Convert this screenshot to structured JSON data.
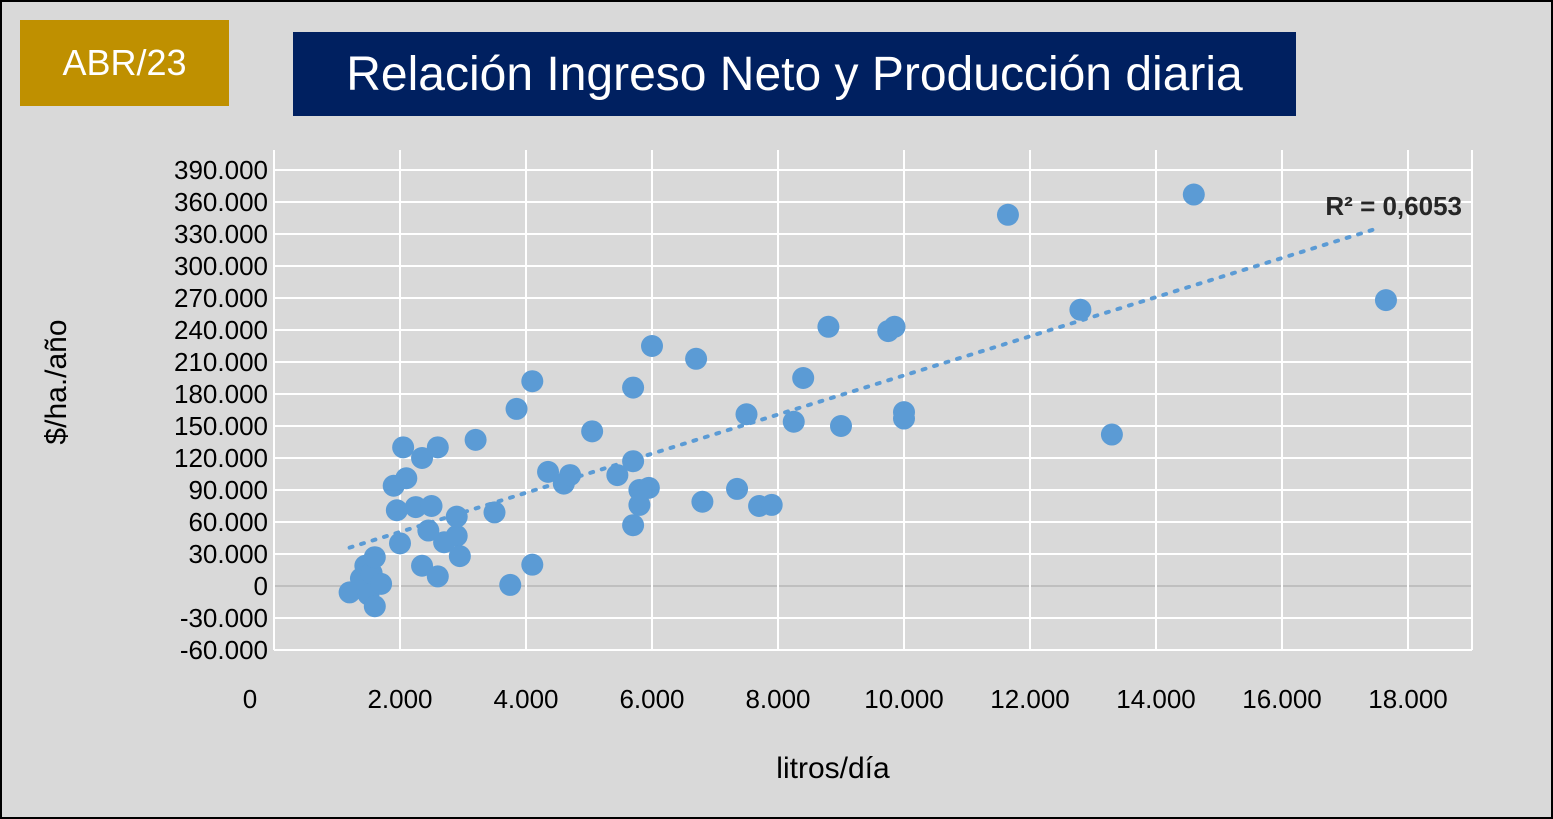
{
  "badge": "ABR/23",
  "colors": {
    "background": "#d9d9d9",
    "badge": "#bf9000",
    "title_bg": "#002060",
    "points": "#5b9bd5",
    "trendline": "#5b9bd5",
    "grid": "#ffffff"
  },
  "chart_data": {
    "type": "scatter",
    "title": "Relación Ingreso Neto y Producción diaria",
    "xlabel": "litros/día",
    "ylabel": "$/ha./año",
    "xlim": [
      0,
      18000
    ],
    "ylim": [
      -60000,
      390000
    ],
    "xticks": [
      "0",
      "2.000",
      "4.000",
      "6.000",
      "8.000",
      "10.000",
      "12.000",
      "14.000",
      "16.000",
      "18.000"
    ],
    "yticks": [
      "390.000",
      "360.000",
      "330.000",
      "300.000",
      "270.000",
      "240.000",
      "210.000",
      "180.000",
      "150.000",
      "120.000",
      "90.000",
      "60.000",
      "30.000",
      "0",
      "-30.000",
      "-60.000"
    ],
    "grid": true,
    "trendline": {
      "type": "linear",
      "x": [
        1200,
        17500
      ],
      "y": [
        36000,
        335000
      ]
    },
    "annotation": "R² = 0,6053",
    "points": [
      [
        1200,
        -6000
      ],
      [
        1380,
        7000
      ],
      [
        1450,
        19000
      ],
      [
        1500,
        -8000
      ],
      [
        1550,
        12000
      ],
      [
        1600,
        27000
      ],
      [
        1600,
        -19000
      ],
      [
        1700,
        2000
      ],
      [
        1900,
        94000
      ],
      [
        1950,
        71000
      ],
      [
        2000,
        40000
      ],
      [
        2050,
        130000
      ],
      [
        2100,
        101000
      ],
      [
        2250,
        74000
      ],
      [
        2350,
        19000
      ],
      [
        2350,
        120000
      ],
      [
        2450,
        52000
      ],
      [
        2500,
        75000
      ],
      [
        2600,
        130000
      ],
      [
        2600,
        9000
      ],
      [
        2700,
        41000
      ],
      [
        2900,
        47000
      ],
      [
        2900,
        65000
      ],
      [
        2950,
        28000
      ],
      [
        3200,
        137000
      ],
      [
        3500,
        69000
      ],
      [
        3750,
        1000
      ],
      [
        3850,
        166000
      ],
      [
        4100,
        192000
      ],
      [
        4100,
        20000
      ],
      [
        4350,
        107000
      ],
      [
        4600,
        96000
      ],
      [
        4700,
        104000
      ],
      [
        5050,
        145000
      ],
      [
        5450,
        104000
      ],
      [
        5700,
        186000
      ],
      [
        5700,
        117000
      ],
      [
        5700,
        57000
      ],
      [
        5800,
        90000
      ],
      [
        5800,
        76000
      ],
      [
        5950,
        92000
      ],
      [
        6000,
        225000
      ],
      [
        6700,
        213000
      ],
      [
        6800,
        79000
      ],
      [
        7350,
        91000
      ],
      [
        7500,
        161000
      ],
      [
        7700,
        75000
      ],
      [
        7900,
        76000
      ],
      [
        8250,
        154000
      ],
      [
        8400,
        195000
      ],
      [
        8800,
        243000
      ],
      [
        9000,
        150000
      ],
      [
        9750,
        239000
      ],
      [
        9850,
        243000
      ],
      [
        10000,
        163000
      ],
      [
        10000,
        157000
      ],
      [
        11650,
        348000
      ],
      [
        12800,
        259000
      ],
      [
        13300,
        142000
      ],
      [
        14600,
        367000
      ],
      [
        17650,
        268000
      ]
    ]
  }
}
